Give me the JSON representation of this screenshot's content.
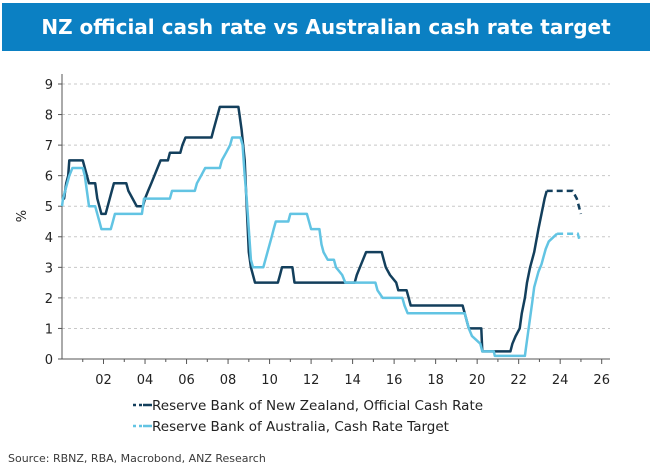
{
  "header": {
    "title": "NZ official cash rate vs Australian cash rate target"
  },
  "source": "Source: RBNZ, RBA, Macrobond, ANZ Research",
  "colors": {
    "title_bg": "#0b80c3",
    "rbnz": "#133f5c",
    "rba": "#62c4e3",
    "grid": "#c8c8c8",
    "axis": "#555555"
  },
  "chart_data": {
    "type": "line",
    "title": "NZ official cash rate vs Australian cash rate target",
    "xlabel": "",
    "ylabel": "%",
    "xlim": [
      2000.0,
      2026.4
    ],
    "ylim": [
      0,
      9
    ],
    "x_ticks": [
      2002,
      2004,
      2006,
      2008,
      2010,
      2012,
      2014,
      2016,
      2018,
      2020,
      2022,
      2024,
      2026
    ],
    "x_tick_labels": [
      "02",
      "04",
      "06",
      "08",
      "10",
      "12",
      "14",
      "16",
      "18",
      "20",
      "22",
      "24",
      "26"
    ],
    "y_ticks": [
      0,
      1,
      2,
      3,
      4,
      5,
      6,
      7,
      8,
      9
    ],
    "y_tick_labels": [
      "0",
      "1",
      "2",
      "3",
      "4",
      "5",
      "6",
      "7",
      "8",
      "9"
    ],
    "grid": "horizontal dashed",
    "legend_position": "bottom-left",
    "series": [
      {
        "name": "Reserve Bank of New Zealand, Official Cash Rate",
        "points": [
          [
            2000.0,
            5.25
          ],
          [
            2000.1,
            5.25
          ],
          [
            2000.2,
            5.75
          ],
          [
            2000.3,
            6.0
          ],
          [
            2000.35,
            6.5
          ],
          [
            2001.0,
            6.5
          ],
          [
            2001.1,
            6.25
          ],
          [
            2001.3,
            5.75
          ],
          [
            2001.6,
            5.75
          ],
          [
            2001.7,
            5.25
          ],
          [
            2001.9,
            4.75
          ],
          [
            2002.1,
            4.75
          ],
          [
            2002.2,
            5.0
          ],
          [
            2002.4,
            5.5
          ],
          [
            2002.5,
            5.75
          ],
          [
            2003.1,
            5.75
          ],
          [
            2003.2,
            5.5
          ],
          [
            2003.4,
            5.25
          ],
          [
            2003.6,
            5.0
          ],
          [
            2003.9,
            5.0
          ],
          [
            2004.0,
            5.25
          ],
          [
            2004.15,
            5.5
          ],
          [
            2004.3,
            5.75
          ],
          [
            2004.45,
            6.0
          ],
          [
            2004.6,
            6.25
          ],
          [
            2004.75,
            6.5
          ],
          [
            2005.1,
            6.5
          ],
          [
            2005.2,
            6.75
          ],
          [
            2005.7,
            6.75
          ],
          [
            2005.8,
            7.0
          ],
          [
            2005.95,
            7.25
          ],
          [
            2007.2,
            7.25
          ],
          [
            2007.3,
            7.5
          ],
          [
            2007.4,
            7.75
          ],
          [
            2007.5,
            8.0
          ],
          [
            2007.6,
            8.25
          ],
          [
            2008.5,
            8.25
          ],
          [
            2008.55,
            8.0
          ],
          [
            2008.65,
            7.5
          ],
          [
            2008.8,
            6.5
          ],
          [
            2008.9,
            5.0
          ],
          [
            2009.0,
            3.5
          ],
          [
            2009.1,
            3.0
          ],
          [
            2009.3,
            2.5
          ],
          [
            2010.4,
            2.5
          ],
          [
            2010.5,
            2.75
          ],
          [
            2010.6,
            3.0
          ],
          [
            2011.1,
            3.0
          ],
          [
            2011.2,
            2.5
          ],
          [
            2014.1,
            2.5
          ],
          [
            2014.2,
            2.75
          ],
          [
            2014.35,
            3.0
          ],
          [
            2014.5,
            3.25
          ],
          [
            2014.65,
            3.5
          ],
          [
            2015.4,
            3.5
          ],
          [
            2015.5,
            3.25
          ],
          [
            2015.6,
            3.0
          ],
          [
            2015.8,
            2.75
          ],
          [
            2016.1,
            2.5
          ],
          [
            2016.2,
            2.25
          ],
          [
            2016.6,
            2.25
          ],
          [
            2016.7,
            2.0
          ],
          [
            2016.8,
            1.75
          ],
          [
            2019.3,
            1.75
          ],
          [
            2019.4,
            1.5
          ],
          [
            2019.6,
            1.0
          ],
          [
            2020.2,
            1.0
          ],
          [
            2020.25,
            0.25
          ],
          [
            2021.6,
            0.25
          ],
          [
            2021.7,
            0.5
          ],
          [
            2021.85,
            0.75
          ],
          [
            2022.05,
            1.0
          ],
          [
            2022.15,
            1.5
          ],
          [
            2022.3,
            2.0
          ],
          [
            2022.4,
            2.5
          ],
          [
            2022.55,
            3.0
          ],
          [
            2022.75,
            3.5
          ],
          [
            2022.95,
            4.25
          ],
          [
            2023.1,
            4.75
          ],
          [
            2023.25,
            5.25
          ],
          [
            2023.35,
            5.5
          ]
        ],
        "forecast": [
          [
            2023.35,
            5.5
          ],
          [
            2024.4,
            5.5
          ],
          [
            2024.6,
            5.5
          ],
          [
            2024.8,
            5.25
          ],
          [
            2025.0,
            4.75
          ]
        ]
      },
      {
        "name": "Reserve Bank of Australia, Cash Rate Target",
        "points": [
          [
            2000.0,
            5.0
          ],
          [
            2000.05,
            5.25
          ],
          [
            2000.15,
            5.5
          ],
          [
            2000.25,
            5.75
          ],
          [
            2000.35,
            6.0
          ],
          [
            2000.5,
            6.25
          ],
          [
            2001.0,
            6.25
          ],
          [
            2001.1,
            6.0
          ],
          [
            2001.2,
            5.5
          ],
          [
            2001.3,
            5.0
          ],
          [
            2001.6,
            5.0
          ],
          [
            2001.7,
            4.75
          ],
          [
            2001.8,
            4.5
          ],
          [
            2001.9,
            4.25
          ],
          [
            2002.35,
            4.25
          ],
          [
            2002.45,
            4.5
          ],
          [
            2002.55,
            4.75
          ],
          [
            2003.85,
            4.75
          ],
          [
            2003.9,
            5.0
          ],
          [
            2003.95,
            5.25
          ],
          [
            2005.2,
            5.25
          ],
          [
            2005.3,
            5.5
          ],
          [
            2006.4,
            5.5
          ],
          [
            2006.5,
            5.75
          ],
          [
            2006.7,
            6.0
          ],
          [
            2006.9,
            6.25
          ],
          [
            2007.6,
            6.25
          ],
          [
            2007.7,
            6.5
          ],
          [
            2007.9,
            6.75
          ],
          [
            2008.1,
            7.0
          ],
          [
            2008.2,
            7.25
          ],
          [
            2008.6,
            7.25
          ],
          [
            2008.7,
            7.0
          ],
          [
            2008.8,
            6.0
          ],
          [
            2008.9,
            5.25
          ],
          [
            2009.0,
            4.25
          ],
          [
            2009.1,
            3.25
          ],
          [
            2009.2,
            3.0
          ],
          [
            2009.7,
            3.0
          ],
          [
            2009.8,
            3.25
          ],
          [
            2009.9,
            3.5
          ],
          [
            2010.0,
            3.75
          ],
          [
            2010.1,
            4.0
          ],
          [
            2010.2,
            4.25
          ],
          [
            2010.3,
            4.5
          ],
          [
            2010.9,
            4.5
          ],
          [
            2011.0,
            4.75
          ],
          [
            2011.8,
            4.75
          ],
          [
            2011.9,
            4.5
          ],
          [
            2012.0,
            4.25
          ],
          [
            2012.4,
            4.25
          ],
          [
            2012.5,
            3.75
          ],
          [
            2012.6,
            3.5
          ],
          [
            2012.8,
            3.25
          ],
          [
            2013.1,
            3.25
          ],
          [
            2013.2,
            3.0
          ],
          [
            2013.5,
            2.75
          ],
          [
            2013.65,
            2.5
          ],
          [
            2015.1,
            2.5
          ],
          [
            2015.2,
            2.25
          ],
          [
            2015.45,
            2.0
          ],
          [
            2016.4,
            2.0
          ],
          [
            2016.5,
            1.75
          ],
          [
            2016.65,
            1.5
          ],
          [
            2019.4,
            1.5
          ],
          [
            2019.5,
            1.25
          ],
          [
            2019.6,
            1.0
          ],
          [
            2019.75,
            0.75
          ],
          [
            2020.15,
            0.5
          ],
          [
            2020.25,
            0.25
          ],
          [
            2020.8,
            0.25
          ],
          [
            2020.85,
            0.1
          ],
          [
            2022.3,
            0.1
          ],
          [
            2022.35,
            0.35
          ],
          [
            2022.45,
            0.85
          ],
          [
            2022.55,
            1.35
          ],
          [
            2022.65,
            1.85
          ],
          [
            2022.75,
            2.35
          ],
          [
            2022.85,
            2.6
          ],
          [
            2022.95,
            2.85
          ],
          [
            2023.1,
            3.1
          ],
          [
            2023.2,
            3.35
          ],
          [
            2023.3,
            3.6
          ],
          [
            2023.45,
            3.85
          ],
          [
            2023.85,
            4.1
          ]
        ],
        "forecast": [
          [
            2023.85,
            4.1
          ],
          [
            2024.6,
            4.1
          ],
          [
            2024.85,
            4.1
          ],
          [
            2024.95,
            3.85
          ]
        ]
      }
    ]
  }
}
